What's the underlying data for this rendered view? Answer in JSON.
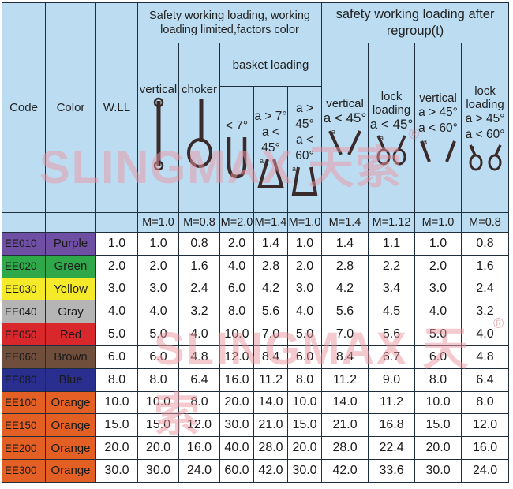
{
  "header": {
    "group1": "Safety working loading, working loading limited,factors color",
    "group2": "safety working loading after regroup(t)",
    "basket": "basket loading",
    "code": "Code",
    "color": "Color",
    "wll": "W.LL",
    "vertical": "vertical",
    "choker": "choker",
    "vertical2": "vertical",
    "lock_loading": "lock loading",
    "vertical3": "vertical",
    "lock_loading2": "lock loading",
    "sym_lt7": "< 7°",
    "sym_a_gt7": "a > 7°",
    "sym_a_lt45": "a < 45°",
    "sym_a_gt45": "a > 45°",
    "sym_a_lt60": "a < 60°",
    "sym_a_lt45b": "a < 45°",
    "sym_a_lt45c": "a < 45°",
    "sym_a_gt45b": "a > 45°",
    "sym_a_lt60b": "a < 60°",
    "sym_a_gt45c": "a > 45°",
    "sym_a_lt60c": "a < 60°",
    "angle_a": "a",
    "m": [
      "M=1.0",
      "M=0.8",
      "M=2.0",
      "M=1.4",
      "M=1.0",
      "M=1.4",
      "M=1.12",
      "M=1.0",
      "M=0.8"
    ]
  },
  "rows": [
    {
      "code": "EE010",
      "color": "Purple",
      "bg": "#6f4fa3",
      "fg": "#1a1a1a",
      "values": [
        "1.0",
        "1.0",
        "0.8",
        "2.0",
        "1.4",
        "1.0",
        "1.4",
        "1.1",
        "1.0",
        "0.8"
      ]
    },
    {
      "code": "EE020",
      "color": "Green",
      "bg": "#2fa84a",
      "fg": "#1a1a1a",
      "values": [
        "2.0",
        "2.0",
        "1.6",
        "4.0",
        "2.8",
        "2.0",
        "2.8",
        "2.2",
        "2.0",
        "1.6"
      ]
    },
    {
      "code": "EE030",
      "color": "Yellow",
      "bg": "#f5ea2a",
      "fg": "#1a1a1a",
      "values": [
        "3.0",
        "3.0",
        "2.4",
        "6.0",
        "4.2",
        "3.0",
        "4.2",
        "3.4",
        "3.0",
        "2.4"
      ]
    },
    {
      "code": "EE040",
      "color": "Gray",
      "bg": "#b5b5b5",
      "fg": "#1a1a1a",
      "values": [
        "4.0",
        "4.0",
        "3.2",
        "8.0",
        "5.6",
        "4.0",
        "5.6",
        "4.5",
        "4.0",
        "3.2"
      ]
    },
    {
      "code": "EE050",
      "color": "Red",
      "bg": "#d8282c",
      "fg": "#1a1a1a",
      "values": [
        "5.0",
        "5.0",
        "4.0",
        "10.0",
        "7.0",
        "5.0",
        "7.0",
        "5.6",
        "5.0",
        "4.0"
      ]
    },
    {
      "code": "EE060",
      "color": "Brown",
      "bg": "#6f4f3c",
      "fg": "#1a1a1a",
      "values": [
        "6.0",
        "6.0",
        "4.8",
        "12.0",
        "8.4",
        "6.0",
        "8.4",
        "6.7",
        "6.0",
        "4.8"
      ]
    },
    {
      "code": "EE080",
      "color": "Blue",
      "bg": "#2a2e8e",
      "fg": "#1a1a1a",
      "values": [
        "8.0",
        "8.0",
        "6.4",
        "16.0",
        "11.2",
        "8.0",
        "11.2",
        "9.0",
        "8.0",
        "6.4"
      ]
    },
    {
      "code": "EE100",
      "color": "Orange",
      "bg": "#e45f23",
      "fg": "#1a1a1a",
      "values": [
        "10.0",
        "10.0",
        "8.0",
        "20.0",
        "14.0",
        "10.0",
        "14.0",
        "11.2",
        "10.0",
        "8.0"
      ]
    },
    {
      "code": "EE150",
      "color": "Orange",
      "bg": "#e45f23",
      "fg": "#1a1a1a",
      "values": [
        "15.0",
        "15.0",
        "12.0",
        "30.0",
        "21.0",
        "15.0",
        "21.0",
        "16.8",
        "15.0",
        "12.0"
      ]
    },
    {
      "code": "EE200",
      "color": "Orange",
      "bg": "#e45f23",
      "fg": "#1a1a1a",
      "values": [
        "20.0",
        "20.0",
        "16.0",
        "40.0",
        "28.0",
        "20.0",
        "28.0",
        "22.4",
        "20.0",
        "16.0"
      ]
    },
    {
      "code": "EE300",
      "color": "Orange",
      "bg": "#e45f23",
      "fg": "#1a1a1a",
      "values": [
        "30.0",
        "30.0",
        "24.0",
        "60.0",
        "42.0",
        "30.0",
        "42.0",
        "33.6",
        "30.0",
        "24.0"
      ]
    }
  ],
  "watermark": {
    "text": "SLINGMAX 天索",
    "reg": "®"
  },
  "colors": {
    "header_bg": "#bcdcf2",
    "border": "#1f2e3c",
    "watermark": "#e996a0"
  }
}
